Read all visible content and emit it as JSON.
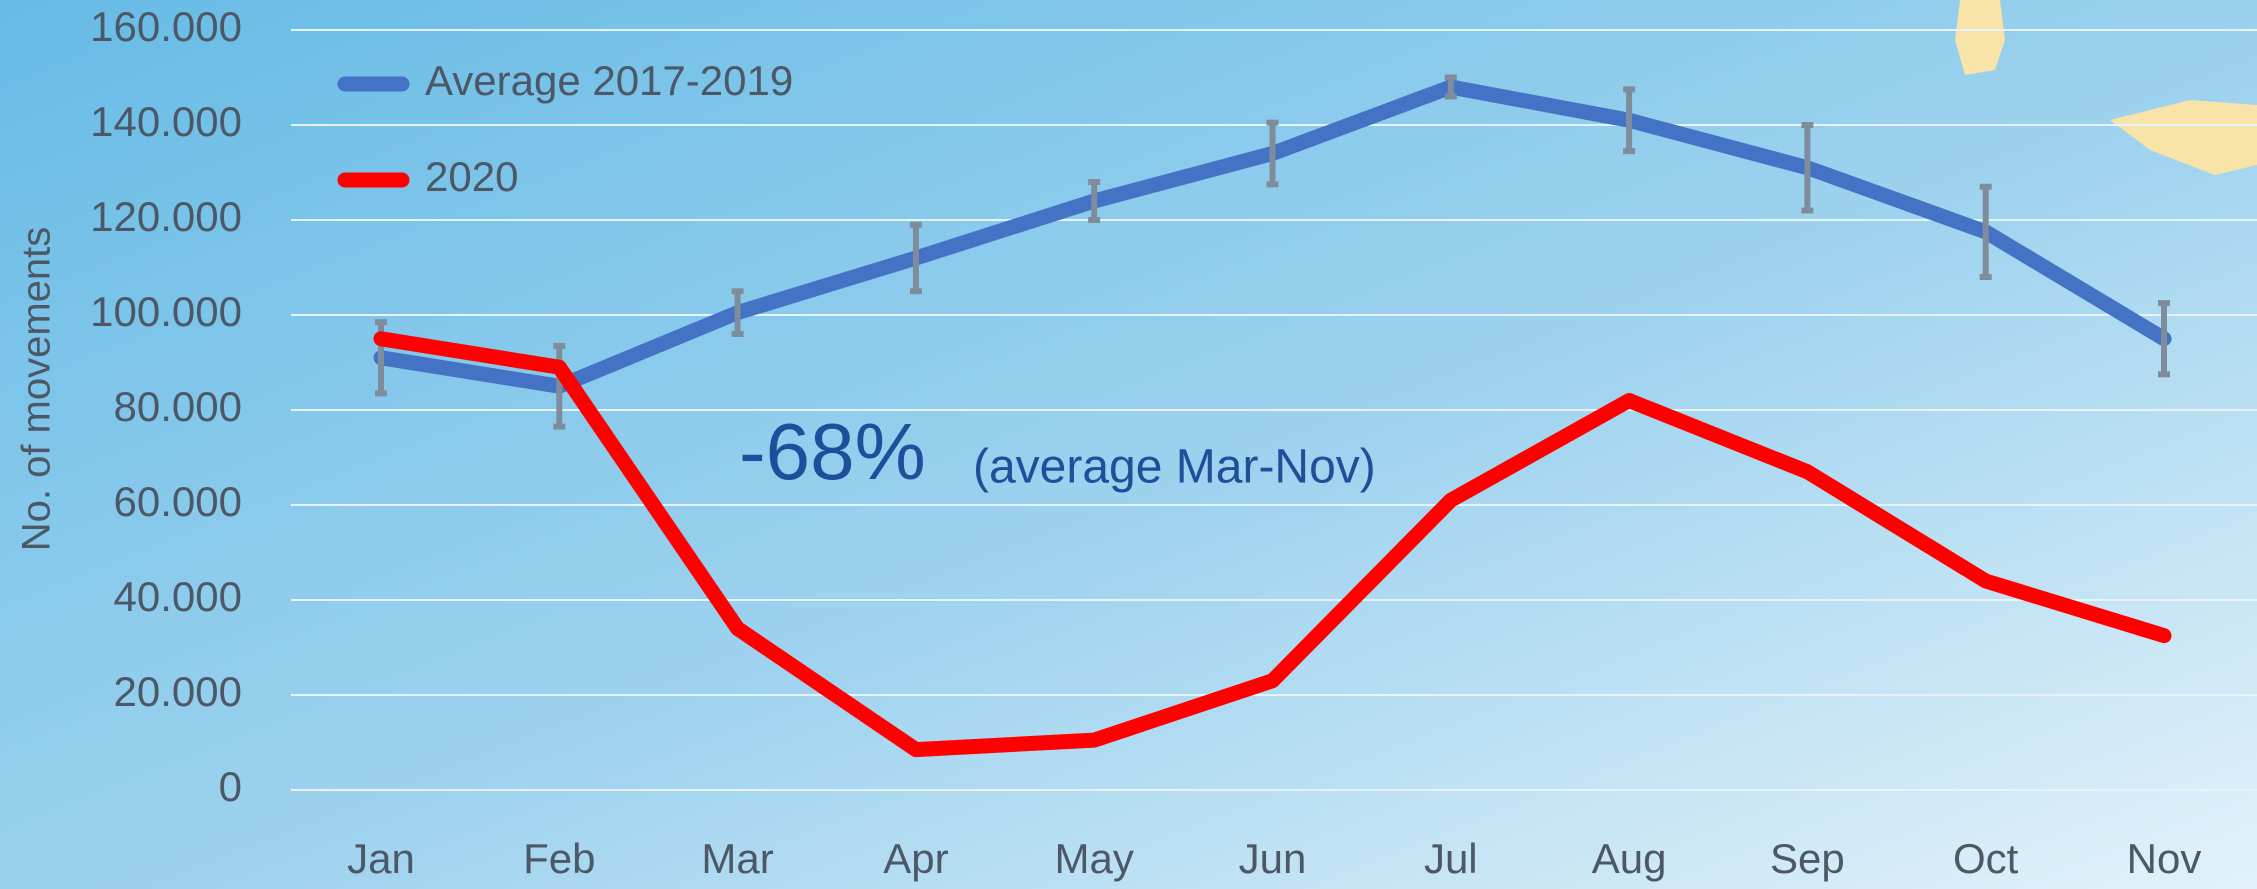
{
  "chart_data": {
    "type": "line",
    "categories": [
      "Jan",
      "Feb",
      "Mar",
      "Apr",
      "May",
      "Jun",
      "Jul",
      "Aug",
      "Sep",
      "Oct",
      "Nov"
    ],
    "series": [
      {
        "name": "Average 2017-2019",
        "color": "#4472c4",
        "values": [
          91000,
          85000,
          100500,
          112000,
          124000,
          134000,
          148000,
          141000,
          131000,
          117500,
          95000
        ],
        "errors": [
          7500,
          8500,
          4500,
          7000,
          4000,
          6500,
          2000,
          6500,
          9000,
          9500,
          7500
        ],
        "error_color": "#7f8c9c"
      },
      {
        "name": "2020",
        "color": "#ff0000",
        "values": [
          95000,
          89000,
          34000,
          8500,
          10500,
          23000,
          61000,
          82000,
          67000,
          44000,
          32500
        ]
      }
    ],
    "ylabel": "No. of movements",
    "ylim": [
      0,
      160000
    ],
    "yticks": [
      0,
      {
        "value": 20000,
        "label": "20.000"
      },
      {
        "value": 40000,
        "label": "40.000"
      },
      {
        "value": 60000,
        "label": "60.000"
      },
      {
        "value": 80000,
        "label": "80.000"
      },
      {
        "value": 100000,
        "label": "100.000"
      },
      {
        "value": 120000,
        "label": "120.000"
      },
      {
        "value": 140000,
        "label": "140.000"
      },
      {
        "value": 160000,
        "label": "160.000"
      }
    ],
    "grid": true,
    "legend": "upper left",
    "annotations": [
      "-68%",
      "(average Mar-Nov)"
    ]
  }
}
